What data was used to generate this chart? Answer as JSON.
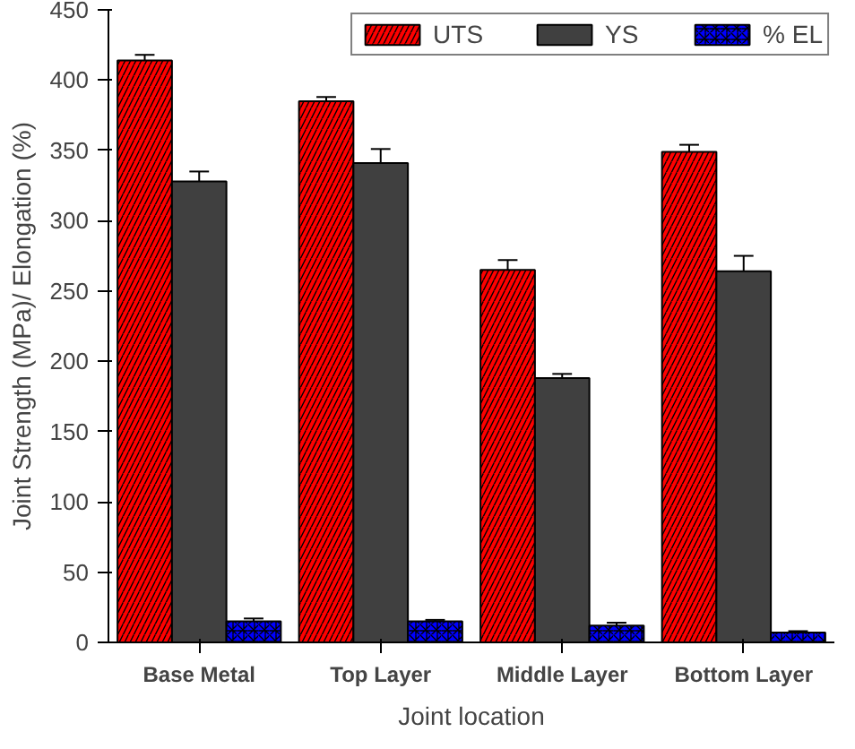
{
  "chart_data": {
    "type": "bar",
    "xlabel": "Joint location",
    "ylabel": "Joint Strength (MPa)/ Elongation (%)",
    "categories": [
      "Base Metal",
      "Top Layer",
      "Middle Layer",
      "Bottom Layer"
    ],
    "series": [
      {
        "name": "UTS",
        "color": "#ff0000",
        "values": [
          414,
          385,
          265,
          349
        ],
        "errors": [
          4,
          3,
          7,
          5
        ]
      },
      {
        "name": "YS",
        "color": "#404040",
        "values": [
          328,
          341,
          188,
          264
        ],
        "errors": [
          7,
          10,
          3,
          11
        ]
      },
      {
        "name": "% EL",
        "color": "#0000ff",
        "values": [
          15,
          15,
          12,
          7
        ],
        "errors": [
          2,
          1,
          2,
          1
        ]
      }
    ],
    "ylim": [
      0,
      450
    ],
    "yticks": [
      0,
      50,
      100,
      150,
      200,
      250,
      300,
      350,
      400,
      450
    ],
    "grid": false,
    "legend": "top right"
  }
}
